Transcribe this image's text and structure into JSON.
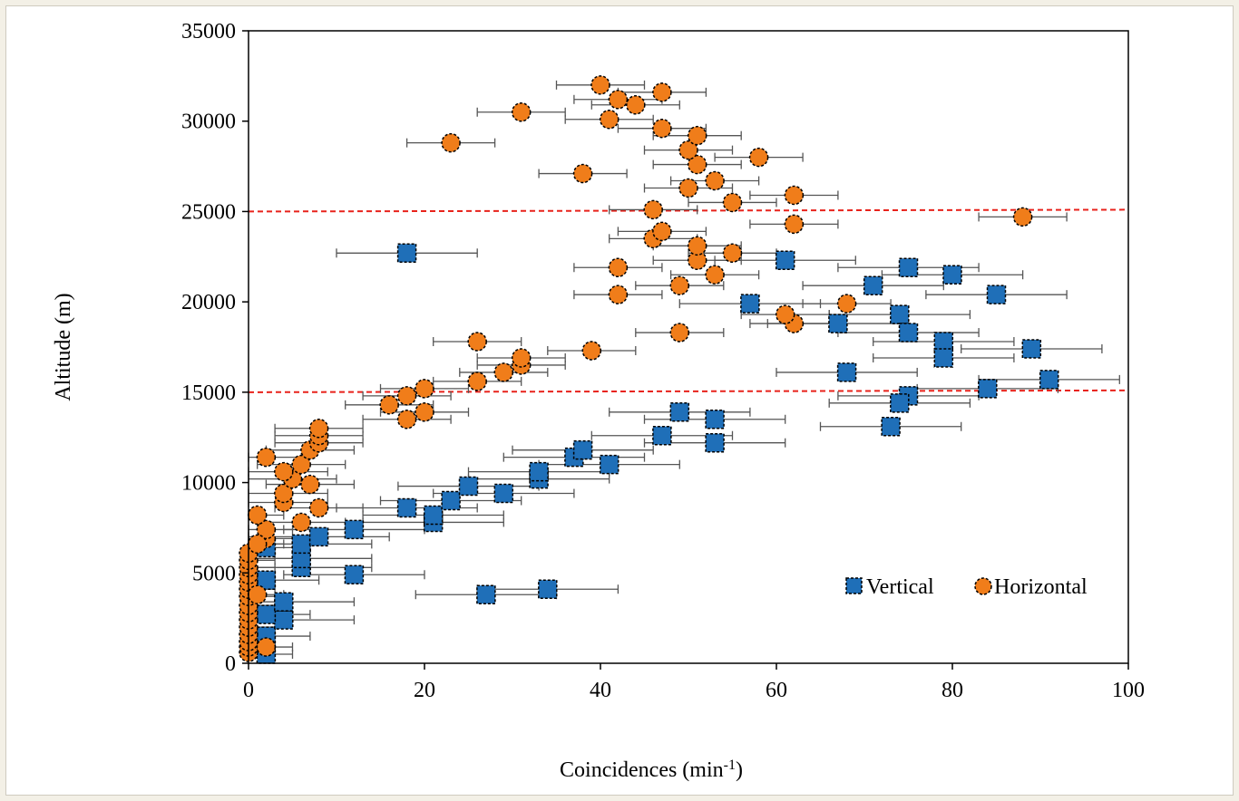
{
  "chart_data": {
    "type": "scatter",
    "title": "",
    "xlabel": "Coincidences (min",
    "xlabel_sup": "-1",
    "xlabel_end": ")",
    "ylabel": "Altitude (m)",
    "xlim": [
      0,
      100
    ],
    "ylim": [
      0,
      35000
    ],
    "x_ticks": [
      "0",
      "20",
      "40",
      "60",
      "80",
      "100"
    ],
    "y_ticks": [
      "0",
      "5000",
      "10000",
      "15000",
      "20000",
      "25000",
      "30000",
      "35000"
    ],
    "grid": false,
    "legend_position": "bottom-right",
    "reference_lines": [
      15000,
      25000
    ],
    "reference_line_color": "#e8221b",
    "series": [
      {
        "name": "Vertical",
        "marker": "square",
        "color": "#1f6fb8",
        "points": [
          [
            2,
            500,
            3
          ],
          [
            2,
            1500,
            5
          ],
          [
            4,
            2400,
            8
          ],
          [
            2,
            2700,
            5
          ],
          [
            4,
            3400,
            8
          ],
          [
            2,
            4600,
            6
          ],
          [
            12,
            4900,
            8
          ],
          [
            6,
            5300,
            8
          ],
          [
            6,
            5800,
            8
          ],
          [
            6,
            6600,
            8
          ],
          [
            2,
            6400,
            5
          ],
          [
            8,
            7000,
            8
          ],
          [
            12,
            7400,
            8
          ],
          [
            21,
            7800,
            8
          ],
          [
            21,
            8200,
            8
          ],
          [
            18,
            8600,
            8
          ],
          [
            23,
            9000,
            8
          ],
          [
            29,
            9400,
            8
          ],
          [
            25,
            9800,
            8
          ],
          [
            33,
            10200,
            8
          ],
          [
            33,
            10600,
            8
          ],
          [
            41,
            11000,
            8
          ],
          [
            37,
            11400,
            8
          ],
          [
            38,
            11800,
            8
          ],
          [
            47,
            12600,
            8
          ],
          [
            53,
            12200,
            8
          ],
          [
            53,
            13500,
            8
          ],
          [
            49,
            13900,
            8
          ],
          [
            27,
            3800,
            8
          ],
          [
            34,
            4100,
            8
          ],
          [
            18,
            22700,
            8
          ],
          [
            61,
            22300,
            8
          ],
          [
            75,
            21900,
            8
          ],
          [
            80,
            21500,
            8
          ],
          [
            71,
            20900,
            8
          ],
          [
            85,
            20400,
            8
          ],
          [
            57,
            19900,
            8
          ],
          [
            74,
            19300,
            8
          ],
          [
            67,
            18800,
            8
          ],
          [
            75,
            18300,
            8
          ],
          [
            79,
            17800,
            8
          ],
          [
            89,
            17400,
            8
          ],
          [
            79,
            16900,
            8
          ],
          [
            68,
            16100,
            8
          ],
          [
            91,
            15700,
            8
          ],
          [
            84,
            15200,
            8
          ],
          [
            75,
            14800,
            8
          ],
          [
            74,
            14400,
            8
          ],
          [
            73,
            13100,
            8
          ]
        ]
      },
      {
        "name": "Horizontal",
        "marker": "circle",
        "color": "#f07d1a",
        "points": [
          [
            0,
            600,
            3
          ],
          [
            0,
            900,
            3
          ],
          [
            0,
            1200,
            3
          ],
          [
            0,
            1600,
            3
          ],
          [
            0,
            2000,
            3
          ],
          [
            0,
            2400,
            3
          ],
          [
            0,
            2800,
            3
          ],
          [
            0,
            3200,
            3
          ],
          [
            0,
            3700,
            3
          ],
          [
            0,
            4100,
            3
          ],
          [
            0,
            4500,
            3
          ],
          [
            0,
            4900,
            3
          ],
          [
            0,
            5300,
            3
          ],
          [
            0,
            5700,
            3
          ],
          [
            0,
            6100,
            3
          ],
          [
            1,
            3800,
            3
          ],
          [
            2,
            900,
            3
          ],
          [
            2,
            6900,
            3
          ],
          [
            2,
            7400,
            3
          ],
          [
            1,
            6600,
            3
          ],
          [
            1,
            8200,
            3
          ],
          [
            6,
            7800,
            5
          ],
          [
            8,
            8600,
            5
          ],
          [
            4,
            8900,
            5
          ],
          [
            4,
            9400,
            5
          ],
          [
            7,
            9900,
            5
          ],
          [
            5,
            10200,
            5
          ],
          [
            4,
            10600,
            5
          ],
          [
            6,
            11000,
            5
          ],
          [
            2,
            11400,
            4
          ],
          [
            7,
            11800,
            5
          ],
          [
            8,
            12200,
            5
          ],
          [
            8,
            12600,
            5
          ],
          [
            8,
            13000,
            5
          ],
          [
            18,
            13500,
            5
          ],
          [
            20,
            13900,
            5
          ],
          [
            16,
            14300,
            5
          ],
          [
            18,
            14800,
            5
          ],
          [
            20,
            15200,
            5
          ],
          [
            26,
            15600,
            5
          ],
          [
            29,
            16100,
            5
          ],
          [
            31,
            16500,
            5
          ],
          [
            31,
            16900,
            5
          ],
          [
            39,
            17300,
            5
          ],
          [
            26,
            17800,
            5
          ],
          [
            49,
            18300,
            5
          ],
          [
            62,
            18800,
            5
          ],
          [
            61,
            19300,
            5
          ],
          [
            68,
            19900,
            5
          ],
          [
            42,
            20400,
            5
          ],
          [
            49,
            20900,
            5
          ],
          [
            53,
            21500,
            5
          ],
          [
            42,
            21900,
            5
          ],
          [
            51,
            22300,
            5
          ],
          [
            55,
            22700,
            5
          ],
          [
            51,
            23100,
            5
          ],
          [
            46,
            23500,
            5
          ],
          [
            47,
            23900,
            5
          ],
          [
            62,
            24300,
            5
          ],
          [
            88,
            24700,
            5
          ],
          [
            46,
            25100,
            5
          ],
          [
            55,
            25500,
            5
          ],
          [
            62,
            25900,
            5
          ],
          [
            50,
            26300,
            5
          ],
          [
            53,
            26700,
            5
          ],
          [
            38,
            27100,
            5
          ],
          [
            51,
            27600,
            5
          ],
          [
            58,
            28000,
            5
          ],
          [
            50,
            28400,
            5
          ],
          [
            23,
            28800,
            5
          ],
          [
            51,
            29200,
            5
          ],
          [
            47,
            29600,
            5
          ],
          [
            41,
            30100,
            5
          ],
          [
            31,
            30500,
            5
          ],
          [
            44,
            30900,
            5
          ],
          [
            42,
            31200,
            5
          ],
          [
            47,
            31600,
            5
          ],
          [
            40,
            32000,
            5
          ]
        ]
      }
    ]
  }
}
